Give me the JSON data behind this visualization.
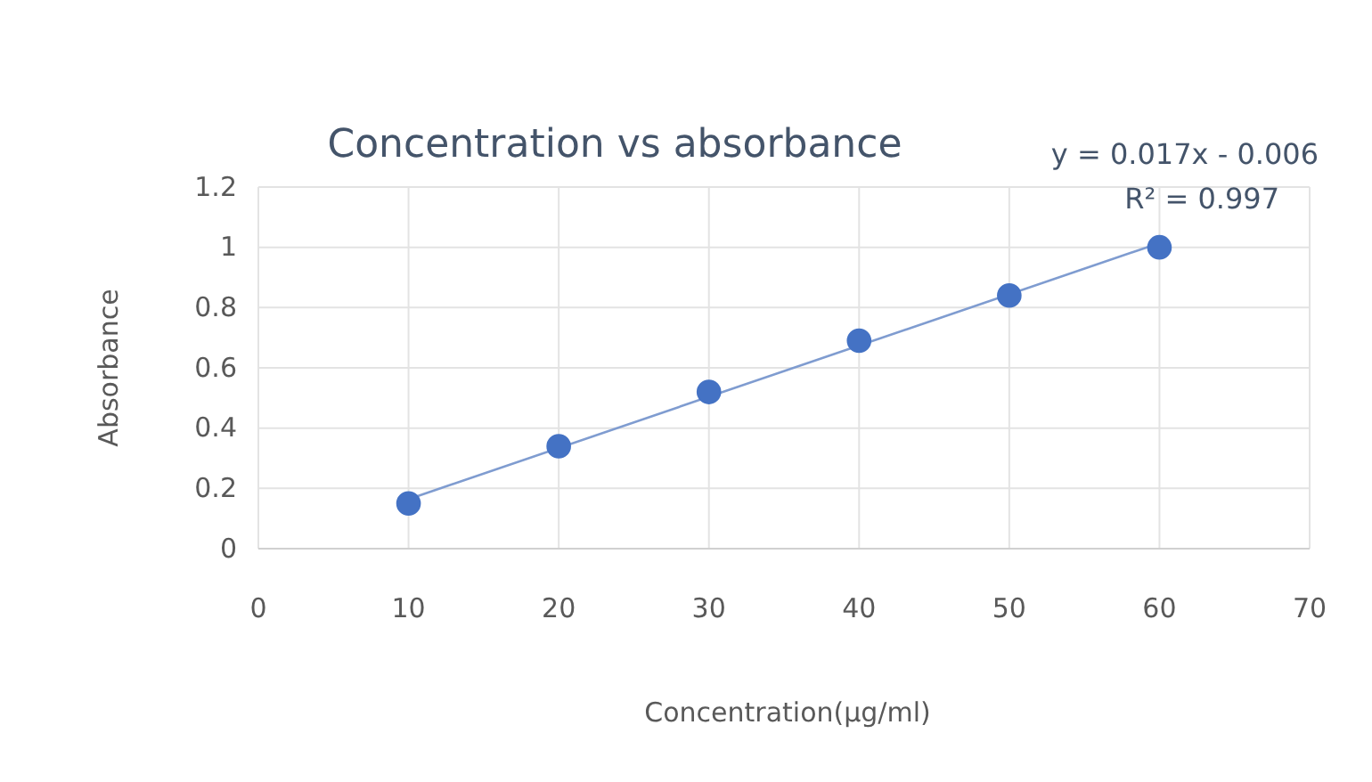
{
  "chart_data": {
    "type": "scatter",
    "title": "Concentration vs absorbance",
    "xlabel": "Concentration(µg/ml)",
    "ylabel": "Absorbance",
    "xlim": [
      0,
      70
    ],
    "xticks": [
      0,
      10,
      20,
      30,
      40,
      50,
      60,
      70
    ],
    "ylim": [
      0,
      1.2
    ],
    "yticks": [
      0,
      0.2,
      0.4,
      0.6,
      0.8,
      1,
      1.2
    ],
    "grid": true,
    "series": [
      {
        "marker": "circle",
        "color": "#4472c4",
        "x": [
          10,
          20,
          30,
          40,
          50,
          60
        ],
        "values": [
          0.15,
          0.34,
          0.52,
          0.69,
          0.84,
          1.0
        ]
      },
      {
        "type": "line",
        "color": "#7f9cd0",
        "x": [
          10,
          60
        ],
        "values": [
          0.164,
          1.014
        ]
      }
    ],
    "annotations": [
      "y = 0.017x - 0.006",
      "R² = 0.997"
    ]
  }
}
